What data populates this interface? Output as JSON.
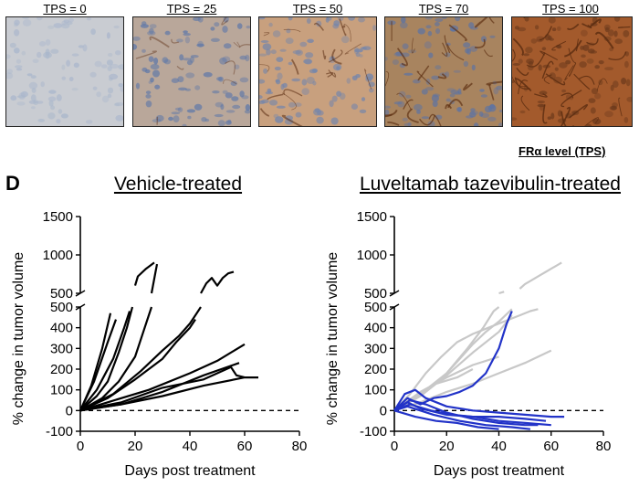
{
  "ihc": {
    "tiles": [
      {
        "label": "TPS = 0",
        "bg": "#c9ccd2",
        "dots": "#a9b6cc",
        "stain": 0.0
      },
      {
        "label": "TPS = 25",
        "bg": "#b9a79a",
        "dots": "#5f78a8",
        "stain": 0.25
      },
      {
        "label": "TPS = 50",
        "bg": "#c8a07e",
        "dots": "#6f84ae",
        "stain": 0.5
      },
      {
        "label": "TPS = 70",
        "bg": "#a8845f",
        "dots": "#5b73a5",
        "stain": 0.7
      },
      {
        "label": "TPS = 100",
        "bg": "#a35a2c",
        "dots": "#6c3a1c",
        "stain": 1.0
      }
    ],
    "scale_label": "FRα level (TPS)"
  },
  "panel_letter": "D",
  "colors": {
    "black": "#000000",
    "gray": "#c8c8c8",
    "blue": "#2233c8"
  },
  "chart_data": [
    {
      "type": "line",
      "title": "Vehicle-treated",
      "xlabel": "Days post treatment",
      "ylabel": "% change in tumor volume",
      "xlim": [
        0,
        80
      ],
      "x_ticks": [
        0,
        20,
        40,
        60,
        80
      ],
      "ylim_lower": [
        -100,
        500
      ],
      "ylim_upper": [
        500,
        1500
      ],
      "y_ticks_lower": [
        -100,
        0,
        100,
        200,
        300,
        400,
        500
      ],
      "y_ticks_upper": [
        500,
        1000,
        1500
      ],
      "baseline": 0,
      "series": [
        {
          "color": "black",
          "x": [
            0,
            4,
            8,
            11
          ],
          "y": [
            0,
            120,
            300,
            470
          ]
        },
        {
          "color": "black",
          "x": [
            0,
            5,
            10,
            13
          ],
          "y": [
            0,
            140,
            330,
            440
          ]
        },
        {
          "color": "black",
          "x": [
            0,
            6,
            12,
            16,
            18,
            20,
            21,
            24,
            27
          ],
          "y": [
            0,
            100,
            250,
            400,
            480,
            600,
            720,
            820,
            900
          ]
        },
        {
          "color": "black",
          "x": [
            0,
            6,
            10,
            14,
            17,
            19
          ],
          "y": [
            0,
            70,
            140,
            280,
            400,
            500
          ]
        },
        {
          "color": "black",
          "x": [
            0,
            8,
            14,
            20,
            23,
            26,
            28
          ],
          "y": [
            0,
            60,
            140,
            260,
            380,
            500,
            880
          ]
        },
        {
          "color": "black",
          "x": [
            0,
            10,
            20,
            30,
            35,
            40,
            42
          ],
          "y": [
            0,
            60,
            150,
            250,
            330,
            400,
            440
          ]
        },
        {
          "color": "black",
          "x": [
            0,
            12,
            22,
            30,
            36,
            40,
            42,
            44,
            46,
            48,
            50,
            52,
            54,
            56
          ],
          "y": [
            0,
            80,
            190,
            290,
            360,
            420,
            460,
            500,
            630,
            700,
            600,
            700,
            760,
            780
          ]
        },
        {
          "color": "black",
          "x": [
            0,
            10,
            25,
            40,
            50,
            60
          ],
          "y": [
            0,
            40,
            100,
            180,
            240,
            320
          ]
        },
        {
          "color": "black",
          "x": [
            0,
            15,
            30,
            45,
            58
          ],
          "y": [
            0,
            30,
            90,
            170,
            230
          ]
        },
        {
          "color": "black",
          "x": [
            0,
            15,
            30,
            45,
            55,
            57,
            60
          ],
          "y": [
            0,
            40,
            110,
            150,
            210,
            170,
            160
          ]
        },
        {
          "color": "black",
          "x": [
            0,
            15,
            30,
            45,
            60,
            65
          ],
          "y": [
            0,
            30,
            70,
            120,
            160,
            160
          ]
        }
      ]
    },
    {
      "type": "line",
      "title": "Luveltamab tazevibulin-treated",
      "xlabel": "Days post treatment",
      "ylabel": "% change in tumor volume",
      "xlim": [
        0,
        80
      ],
      "x_ticks": [
        0,
        20,
        40,
        60,
        80
      ],
      "ylim_lower": [
        -100,
        500
      ],
      "ylim_upper": [
        500,
        1500
      ],
      "y_ticks_lower": [
        -100,
        0,
        100,
        200,
        300,
        400,
        500
      ],
      "y_ticks_upper": [
        500,
        1000,
        1500
      ],
      "baseline": 0,
      "series": [
        {
          "color": "gray",
          "x": [
            0,
            8,
            15,
            20,
            25,
            30,
            35,
            40,
            45,
            48,
            50,
            52,
            54,
            56,
            58,
            60,
            62,
            64
          ],
          "y": [
            0,
            60,
            120,
            180,
            250,
            320,
            380,
            430,
            490,
            560,
            620,
            660,
            700,
            740,
            780,
            820,
            860,
            900
          ]
        },
        {
          "color": "gray",
          "x": [
            0,
            10,
            20,
            30,
            40,
            45
          ],
          "y": [
            0,
            70,
            170,
            280,
            380,
            460
          ]
        },
        {
          "color": "gray",
          "x": [
            0,
            10,
            20,
            28,
            34,
            38,
            40,
            42
          ],
          "y": [
            0,
            80,
            180,
            300,
            400,
            480,
            500,
            520
          ]
        },
        {
          "color": "gray",
          "x": [
            0,
            10,
            20,
            30,
            40,
            50,
            60
          ],
          "y": [
            0,
            40,
            90,
            130,
            180,
            230,
            290
          ]
        },
        {
          "color": "gray",
          "x": [
            0,
            6,
            12,
            18,
            24,
            30,
            36,
            42,
            48,
            52,
            55
          ],
          "y": [
            0,
            80,
            180,
            260,
            330,
            370,
            400,
            430,
            460,
            480,
            490
          ]
        },
        {
          "color": "gray",
          "x": [
            0,
            10,
            20,
            30,
            40
          ],
          "y": [
            0,
            90,
            160,
            220,
            260
          ]
        },
        {
          "color": "gray",
          "x": [
            0,
            8,
            16,
            24,
            30
          ],
          "y": [
            0,
            60,
            130,
            160,
            200
          ]
        },
        {
          "color": "blue",
          "x": [
            0,
            5,
            10,
            15,
            20,
            25,
            30,
            35,
            40,
            43,
            45
          ],
          "y": [
            0,
            60,
            30,
            60,
            70,
            90,
            120,
            180,
            300,
            420,
            480
          ]
        },
        {
          "color": "blue",
          "x": [
            0,
            4,
            8,
            12,
            20,
            30,
            40,
            50,
            60,
            65
          ],
          "y": [
            0,
            80,
            100,
            60,
            20,
            0,
            -10,
            -20,
            -30,
            -30
          ]
        },
        {
          "color": "blue",
          "x": [
            0,
            5,
            10,
            20,
            30,
            40,
            50,
            58
          ],
          "y": [
            0,
            40,
            10,
            -20,
            -30,
            -30,
            -40,
            -50
          ]
        },
        {
          "color": "blue",
          "x": [
            0,
            6,
            12,
            20,
            30,
            40,
            50,
            55
          ],
          "y": [
            0,
            50,
            30,
            -10,
            -40,
            -60,
            -70,
            -70
          ]
        },
        {
          "color": "blue",
          "x": [
            0,
            5,
            15,
            25,
            35,
            45,
            52
          ],
          "y": [
            0,
            20,
            -20,
            -50,
            -70,
            -80,
            -90
          ]
        },
        {
          "color": "blue",
          "x": [
            0,
            6,
            14,
            22,
            30,
            40,
            50,
            60
          ],
          "y": [
            0,
            30,
            0,
            -20,
            -30,
            -50,
            -60,
            -70
          ]
        },
        {
          "color": "blue",
          "x": [
            0,
            8,
            16,
            24,
            32,
            40
          ],
          "y": [
            0,
            -30,
            -50,
            -60,
            -80,
            -90
          ]
        }
      ]
    }
  ]
}
